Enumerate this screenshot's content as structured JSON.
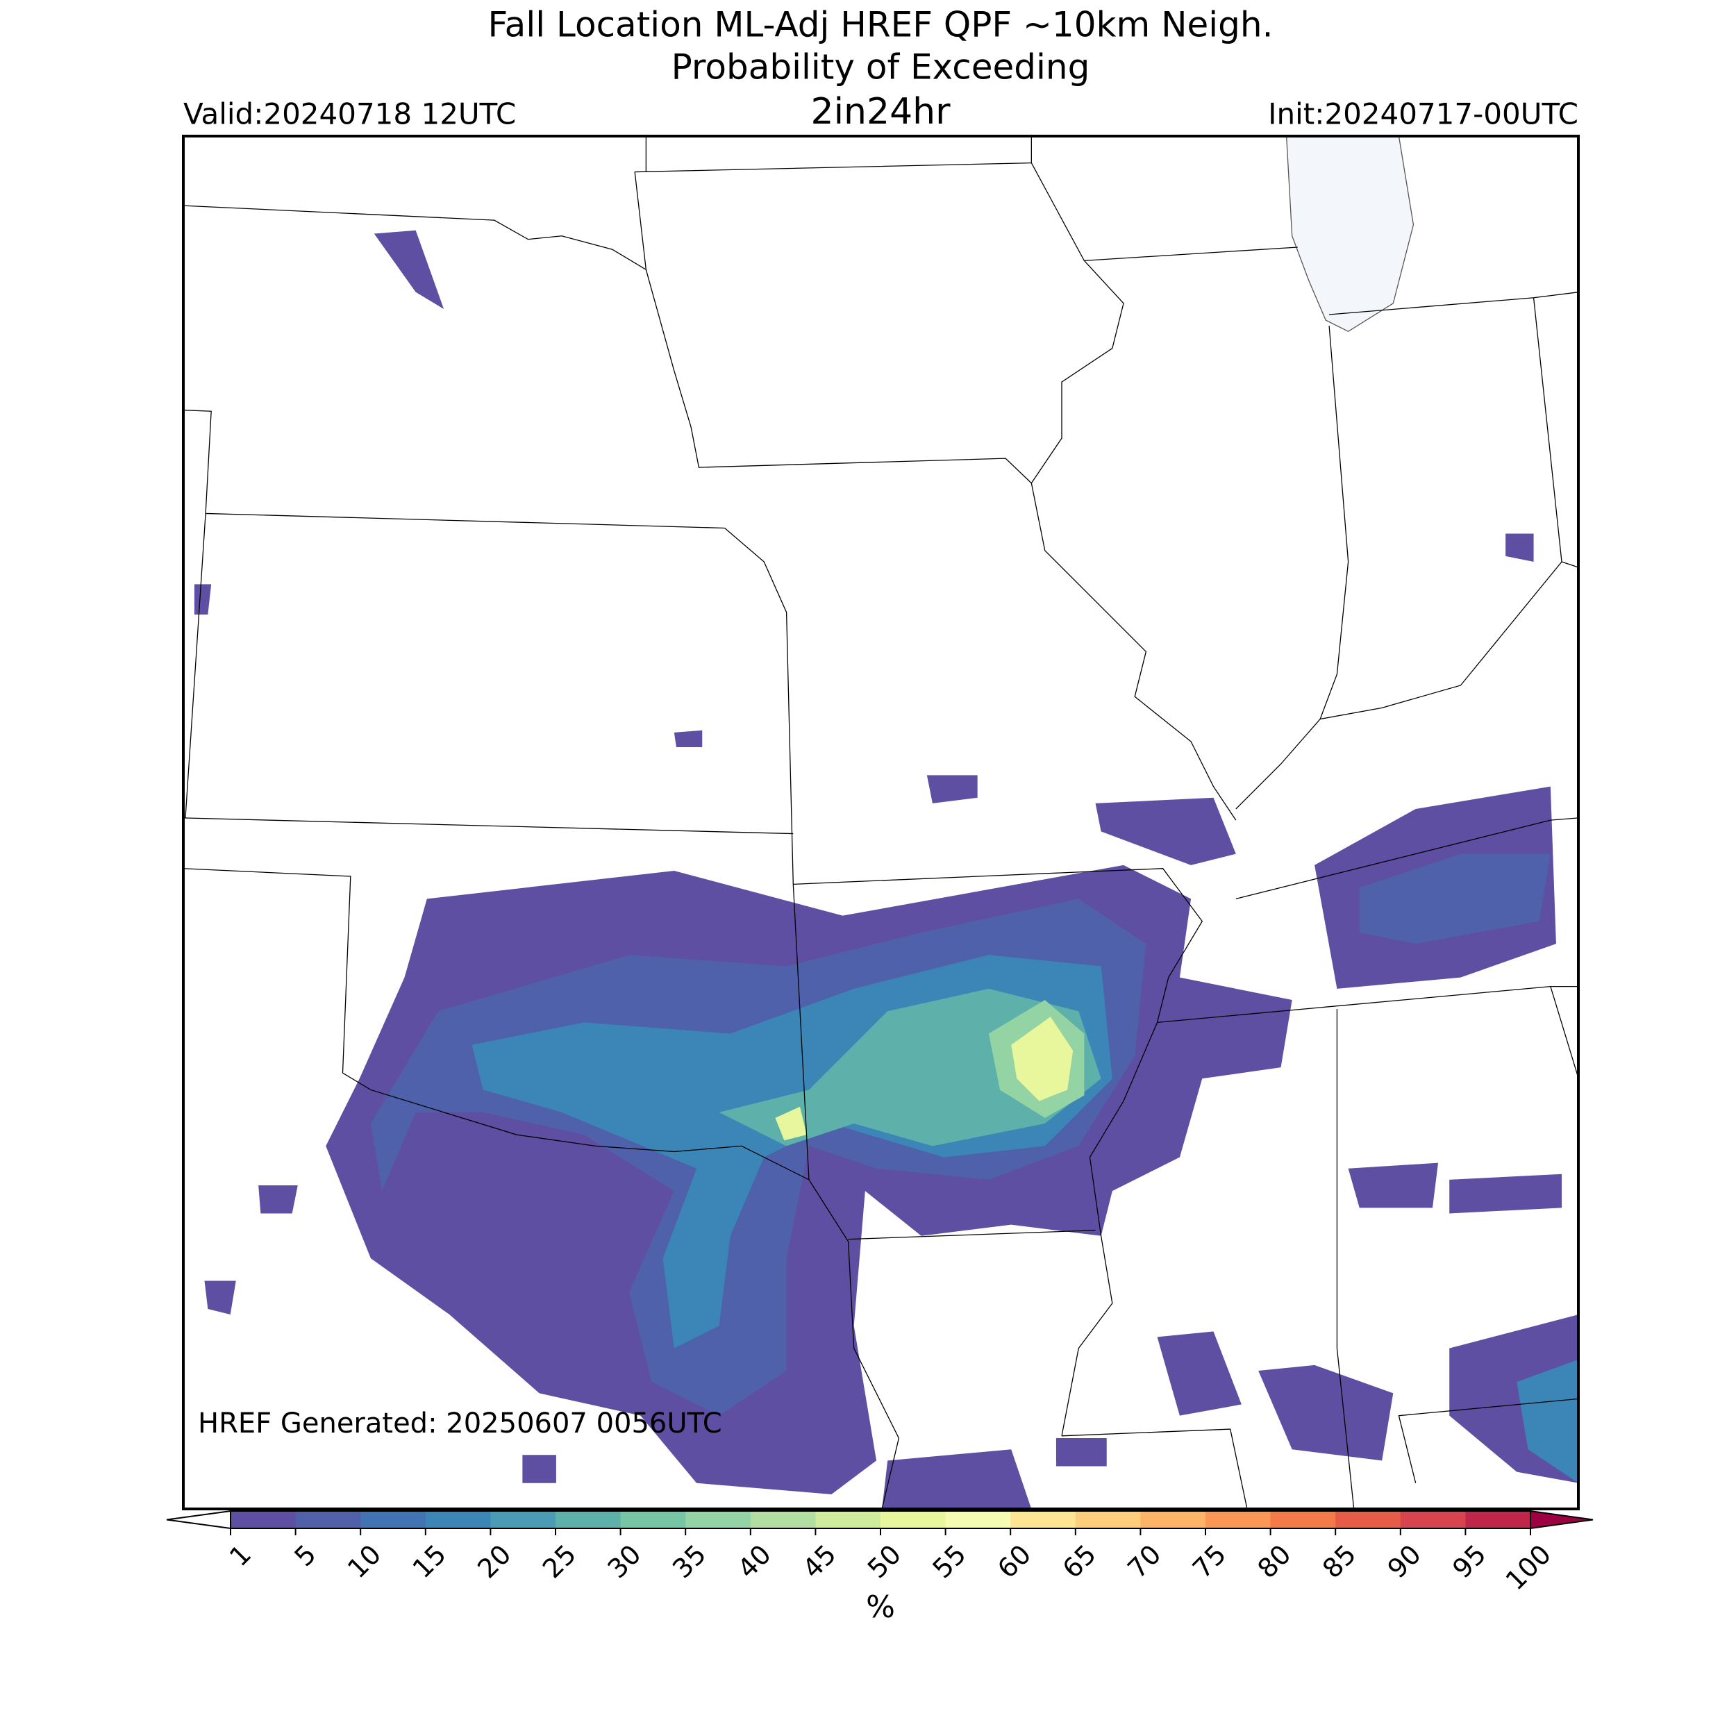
{
  "header": {
    "title_lines": [
      "Fall Location ML-Adj HREF QPF ~10km Neigh.",
      "Probability of Exceeding",
      "2in24hr"
    ],
    "valid": "Valid:20240718 12UTC",
    "init": "Init:20240717-00UTC"
  },
  "footer_note": "HREF Generated: 20250607 0056UTC",
  "colorbar": {
    "ticks": [
      1,
      5,
      10,
      15,
      20,
      25,
      30,
      35,
      40,
      45,
      50,
      55,
      60,
      65,
      70,
      75,
      80,
      85,
      90,
      95,
      100
    ],
    "colors": [
      "#5e4fa2",
      "#5061aa",
      "#4273b3",
      "#3c86b7",
      "#4a9bb4",
      "#5eb0ab",
      "#76c5a4",
      "#94d3a4",
      "#b1dfa2",
      "#cfec9d",
      "#e8f69c",
      "#f6fbb2",
      "#fee593",
      "#fece7c",
      "#fdb466",
      "#fa9656",
      "#f47a4a",
      "#e65c47",
      "#d7444e",
      "#c0264a"
    ],
    "under_color": "#ffffff",
    "over_color": "#9e0142",
    "label": "%"
  }
}
